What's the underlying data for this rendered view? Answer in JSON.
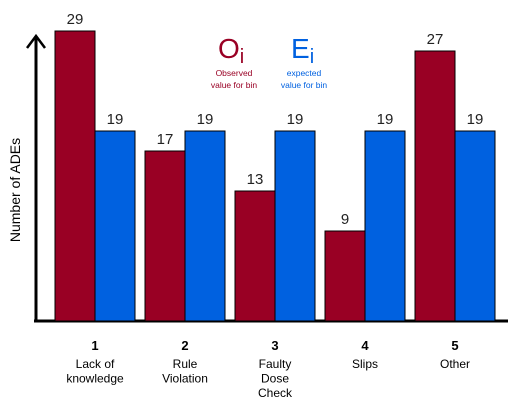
{
  "chart_data": {
    "type": "bar",
    "categories": [
      "1",
      "2",
      "3",
      "4",
      "5"
    ],
    "category_labels": [
      "Lack of knowledge",
      "Rule Violation",
      "Faulty Dose Check",
      "Slips",
      "Other"
    ],
    "category_label_lines": [
      [
        "Lack of",
        "knowledge"
      ],
      [
        "Rule",
        "Violation"
      ],
      [
        "Faulty",
        "Dose",
        "Check"
      ],
      [
        "Slips"
      ],
      [
        "Other"
      ]
    ],
    "series": [
      {
        "name": "Oi",
        "description_lines": [
          "Observed",
          "value for bin"
        ],
        "color": "#990024",
        "values": [
          29,
          17,
          13,
          9,
          27
        ]
      },
      {
        "name": "Ei",
        "description_lines": [
          "expected",
          "value for bin"
        ],
        "color": "#0061e0",
        "values": [
          19,
          19,
          19,
          19,
          19
        ]
      }
    ],
    "ylabel": "Number of ADEs",
    "xlabel": "",
    "title": "",
    "ylim": [
      0,
      29
    ],
    "grid": false,
    "legend": "top-center"
  }
}
